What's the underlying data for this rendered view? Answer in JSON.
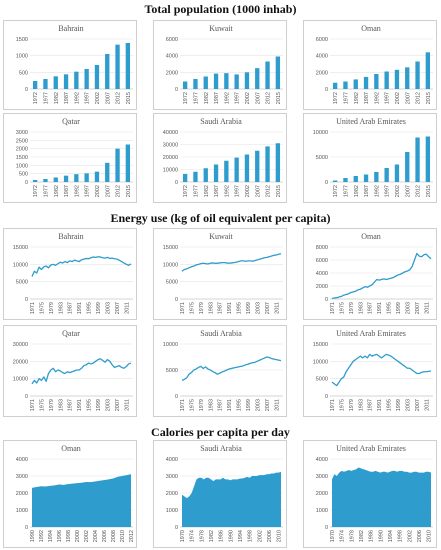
{
  "sections": [
    {
      "title": "Total population (1000 inhab)",
      "top": 2
    },
    {
      "title": "Energy use (kg of oil equivalent per capita)",
      "top": 211
    },
    {
      "title": "Calories per capita per day",
      "top": 425
    }
  ],
  "colors": {
    "accent": "#2e9ccd",
    "accent_fill": "#2e9ccd"
  },
  "chart_data": [
    {
      "type": "bar",
      "title": "Bahrain",
      "categories": [
        "1972",
        "1977",
        "1982",
        "1987",
        "1992",
        "1997",
        "2002",
        "2007",
        "2012",
        "2015"
      ],
      "values": [
        240,
        300,
        380,
        440,
        520,
        600,
        720,
        1050,
        1330,
        1380
      ],
      "ylim": [
        0,
        1500
      ],
      "yticks": [
        0,
        500,
        1000,
        1500
      ]
    },
    {
      "type": "bar",
      "title": "Kuwait",
      "categories": [
        "1972",
        "1977",
        "1982",
        "1987",
        "1992",
        "1997",
        "2002",
        "2007",
        "2012",
        "2015"
      ],
      "values": [
        900,
        1200,
        1500,
        1850,
        1900,
        1750,
        2000,
        2500,
        3300,
        3900
      ],
      "ylim": [
        0,
        6000
      ],
      "yticks": [
        0,
        2000,
        4000,
        6000
      ]
    },
    {
      "type": "bar",
      "title": "Oman",
      "categories": [
        "1972",
        "1977",
        "1982",
        "1987",
        "1992",
        "1997",
        "2002",
        "2007",
        "2012",
        "2015"
      ],
      "values": [
        750,
        900,
        1150,
        1450,
        1800,
        2100,
        2300,
        2600,
        3300,
        4400
      ],
      "ylim": [
        0,
        6000
      ],
      "yticks": [
        0,
        2000,
        4000,
        6000
      ]
    },
    {
      "type": "bar",
      "title": "Qatar",
      "categories": [
        "1972",
        "1977",
        "1982",
        "1987",
        "1992",
        "1997",
        "2002",
        "2007",
        "2012",
        "2015"
      ],
      "values": [
        120,
        180,
        270,
        380,
        470,
        520,
        620,
        1150,
        2000,
        2250
      ],
      "ylim": [
        0,
        3000
      ],
      "yticks": [
        0,
        500,
        1000,
        1500,
        2000,
        2500,
        3000
      ]
    },
    {
      "type": "bar",
      "title": "Saudi Arabia",
      "categories": [
        "1972",
        "1977",
        "1982",
        "1987",
        "1992",
        "1997",
        "2002",
        "2007",
        "2012",
        "2015"
      ],
      "values": [
        6500,
        8200,
        11000,
        14000,
        17000,
        19500,
        22000,
        25000,
        28500,
        31000
      ],
      "ylim": [
        0,
        40000
      ],
      "yticks": [
        0,
        10000,
        20000,
        30000,
        40000
      ]
    },
    {
      "type": "bar",
      "title": "United Arab Emirates",
      "categories": [
        "1972",
        "1977",
        "1982",
        "1987",
        "1992",
        "1997",
        "2002",
        "2007",
        "2012",
        "2015"
      ],
      "values": [
        300,
        800,
        1200,
        1500,
        2000,
        2800,
        3500,
        6000,
        8900,
        9100
      ],
      "ylim": [
        0,
        10000
      ],
      "yticks": [
        0,
        5000,
        10000
      ]
    },
    {
      "type": "line",
      "title": "Bahrain",
      "x": [
        1971,
        1972,
        1973,
        1974,
        1975,
        1976,
        1977,
        1978,
        1979,
        1980,
        1981,
        1982,
        1983,
        1984,
        1985,
        1986,
        1987,
        1988,
        1989,
        1990,
        1991,
        1992,
        1993,
        1994,
        1995,
        1996,
        1997,
        1998,
        1999,
        2000,
        2001,
        2002,
        2003,
        2004,
        2005,
        2006,
        2007,
        2008,
        2009,
        2010,
        2011,
        2012,
        2013
      ],
      "values": [
        6500,
        8000,
        7500,
        9200,
        8500,
        9300,
        9500,
        9000,
        9800,
        10000,
        9700,
        10200,
        10600,
        10400,
        10800,
        10500,
        11000,
        10800,
        11200,
        11000,
        10800,
        11300,
        11500,
        11700,
        11600,
        11900,
        12100,
        12000,
        12200,
        12100,
        11900,
        11800,
        12000,
        11700,
        11800,
        11600,
        11500,
        11200,
        10800,
        10400,
        10000,
        9700,
        10100
      ],
      "xticks": [
        "1971",
        "1975",
        "1979",
        "1983",
        "1987",
        "1991",
        "1995",
        "1999",
        "2003",
        "2007",
        "2011"
      ],
      "ylim": [
        0,
        15000
      ],
      "yticks": [
        0,
        5000,
        10000,
        15000
      ]
    },
    {
      "type": "line",
      "title": "Kuwait",
      "x": [
        1971,
        1972,
        1973,
        1974,
        1975,
        1976,
        1977,
        1978,
        1979,
        1980,
        1981,
        1982,
        1983,
        1984,
        1985,
        1986,
        1987,
        1988,
        1989,
        1990,
        1991,
        1992,
        1993,
        1994,
        1995,
        1996,
        1997,
        1998,
        1999,
        2000,
        2001,
        2002,
        2003,
        2004,
        2005,
        2006,
        2007,
        2008,
        2009,
        2010,
        2011,
        2012,
        2013
      ],
      "values": [
        8000,
        8500,
        8700,
        9000,
        9300,
        9500,
        9800,
        10000,
        10200,
        10300,
        10200,
        10100,
        10300,
        10400,
        10300,
        10300,
        10400,
        10500,
        10500,
        10400,
        10300,
        10400,
        10500,
        10600,
        10800,
        11000,
        11000,
        10900,
        11000,
        11000,
        10900,
        11100,
        11300,
        11500,
        11700,
        11900,
        12000,
        12200,
        12400,
        12600,
        12700,
        12900,
        13100
      ],
      "xticks": [
        "1971",
        "1975",
        "1979",
        "1983",
        "1987",
        "1991",
        "1995",
        "1999",
        "2003",
        "2007",
        "2011"
      ],
      "ylim": [
        0,
        15000
      ],
      "yticks": [
        0,
        5000,
        10000,
        15000
      ]
    },
    {
      "type": "line",
      "title": "Oman",
      "x": [
        1971,
        1972,
        1973,
        1974,
        1975,
        1976,
        1977,
        1978,
        1979,
        1980,
        1981,
        1982,
        1983,
        1984,
        1985,
        1986,
        1987,
        1988,
        1989,
        1990,
        1991,
        1992,
        1993,
        1994,
        1995,
        1996,
        1997,
        1998,
        1999,
        2000,
        2001,
        2002,
        2003,
        2004,
        2005,
        2006,
        2007,
        2008,
        2009,
        2010,
        2011,
        2012,
        2013
      ],
      "values": [
        100,
        150,
        200,
        300,
        400,
        600,
        700,
        800,
        1000,
        1100,
        1200,
        1400,
        1500,
        1700,
        1900,
        1800,
        2000,
        2200,
        2600,
        3000,
        2900,
        3000,
        3100,
        3000,
        3100,
        3200,
        3300,
        3500,
        3700,
        3800,
        4000,
        4200,
        4300,
        4500,
        5000,
        6000,
        7000,
        6600,
        6500,
        6800,
        6900,
        6500,
        6200
      ],
      "xticks": [
        "1971",
        "1975",
        "1979",
        "1983",
        "1987",
        "1991",
        "1995",
        "1999",
        "2003",
        "2007",
        "2011"
      ],
      "ylim": [
        0,
        8000
      ],
      "yticks": [
        0,
        2000,
        4000,
        6000,
        8000
      ]
    },
    {
      "type": "line",
      "title": "Qatar",
      "x": [
        1971,
        1972,
        1973,
        1974,
        1975,
        1976,
        1977,
        1978,
        1979,
        1980,
        1981,
        1982,
        1983,
        1984,
        1985,
        1986,
        1987,
        1988,
        1989,
        1990,
        1991,
        1992,
        1993,
        1994,
        1995,
        1996,
        1997,
        1998,
        1999,
        2000,
        2001,
        2002,
        2003,
        2004,
        2005,
        2006,
        2007,
        2008,
        2009,
        2010,
        2011,
        2012,
        2013
      ],
      "values": [
        7000,
        9000,
        7500,
        10000,
        9000,
        11000,
        8500,
        13000,
        15000,
        16000,
        14000,
        15000,
        14500,
        13500,
        13000,
        14000,
        13500,
        14000,
        14500,
        15000,
        15000,
        16000,
        17500,
        18000,
        19000,
        18500,
        19000,
        20000,
        21000,
        21500,
        20500,
        19500,
        21000,
        20000,
        18000,
        16500,
        17000,
        17500,
        16500,
        16000,
        17000,
        18500,
        19000
      ],
      "xticks": [
        "1971",
        "1975",
        "1979",
        "1983",
        "1987",
        "1991",
        "1995",
        "1999",
        "2003",
        "2007",
        "2011"
      ],
      "ylim": [
        0,
        30000
      ],
      "yticks": [
        0,
        10000,
        20000,
        30000
      ]
    },
    {
      "type": "line",
      "title": "Saudi Arabia",
      "x": [
        1971,
        1972,
        1973,
        1974,
        1975,
        1976,
        1977,
        1978,
        1979,
        1980,
        1981,
        1982,
        1983,
        1984,
        1985,
        1986,
        1987,
        1988,
        1989,
        1990,
        1991,
        1992,
        1993,
        1994,
        1995,
        1996,
        1997,
        1998,
        1999,
        2000,
        2001,
        2002,
        2003,
        2004,
        2005,
        2006,
        2007,
        2008,
        2009,
        2010,
        2011,
        2012,
        2013
      ],
      "values": [
        3000,
        3200,
        3500,
        4200,
        4500,
        5000,
        5200,
        5500,
        5700,
        5300,
        5600,
        5200,
        5000,
        4700,
        4500,
        4200,
        4400,
        4600,
        4800,
        5000,
        5200,
        5300,
        5400,
        5500,
        5600,
        5700,
        5800,
        6000,
        6100,
        6300,
        6400,
        6500,
        6700,
        6900,
        7100,
        7300,
        7500,
        7400,
        7200,
        7100,
        7000,
        6900,
        6800
      ],
      "xticks": [
        "1971",
        "1975",
        "1979",
        "1983",
        "1987",
        "1991",
        "1995",
        "1999",
        "2003",
        "2007",
        "2011"
      ],
      "ylim": [
        0,
        10000
      ],
      "yticks": [
        0,
        5000,
        10000
      ]
    },
    {
      "type": "line",
      "title": "United Arab Emirates",
      "x": [
        1971,
        1972,
        1973,
        1974,
        1975,
        1976,
        1977,
        1978,
        1979,
        1980,
        1981,
        1982,
        1983,
        1984,
        1985,
        1986,
        1987,
        1988,
        1989,
        1990,
        1991,
        1992,
        1993,
        1994,
        1995,
        1996,
        1997,
        1998,
        1999,
        2000,
        2001,
        2002,
        2003,
        2004,
        2005,
        2006,
        2007,
        2008,
        2009,
        2010,
        2011,
        2012,
        2013
      ],
      "values": [
        4000,
        3500,
        3000,
        4000,
        5000,
        5500,
        7000,
        8000,
        9000,
        10000,
        10500,
        11000,
        11500,
        11000,
        11500,
        11000,
        12000,
        11500,
        11800,
        12000,
        11500,
        11000,
        11500,
        12000,
        11800,
        11500,
        11000,
        10500,
        10000,
        9500,
        9000,
        8500,
        8000,
        8000,
        7500,
        7000,
        6500,
        6500,
        6800,
        7000,
        7000,
        7100,
        7200
      ],
      "xticks": [
        "1971",
        "1975",
        "1979",
        "1983",
        "1987",
        "1991",
        "1995",
        "1999",
        "2003",
        "2007",
        "2011"
      ],
      "ylim": [
        0,
        15000
      ],
      "yticks": [
        0,
        5000,
        10000,
        15000
      ]
    },
    {
      "type": "area",
      "title": "Oman",
      "x": [
        1990,
        1991,
        1992,
        1993,
        1994,
        1995,
        1996,
        1997,
        1998,
        1999,
        2000,
        2001,
        2002,
        2003,
        2004,
        2005,
        2006,
        2007,
        2008,
        2009,
        2010,
        2011,
        2012
      ],
      "values": [
        2300,
        2350,
        2400,
        2380,
        2420,
        2450,
        2500,
        2480,
        2520,
        2550,
        2580,
        2600,
        2650,
        2640,
        2680,
        2720,
        2760,
        2800,
        2850,
        2950,
        3000,
        3050,
        3100
      ],
      "xticks": [
        "1990",
        "1992",
        "1994",
        "1996",
        "1998",
        "2000",
        "2002",
        "2004",
        "2006",
        "2008",
        "2010",
        "2012"
      ],
      "ylim": [
        0,
        4000
      ],
      "yticks": [
        0,
        1000,
        2000,
        3000,
        4000
      ]
    },
    {
      "type": "area",
      "title": "Saudi Arabia",
      "x": [
        1970,
        1971,
        1972,
        1973,
        1974,
        1975,
        1976,
        1977,
        1978,
        1979,
        1980,
        1981,
        1982,
        1983,
        1984,
        1985,
        1986,
        1987,
        1988,
        1989,
        1990,
        1991,
        1992,
        1993,
        1994,
        1995,
        1996,
        1997,
        1998,
        1999,
        2000,
        2001,
        2002,
        2003,
        2004,
        2005,
        2006,
        2007,
        2008,
        2009,
        2010,
        2011
      ],
      "values": [
        1900,
        1800,
        1700,
        1800,
        2000,
        2400,
        2800,
        2900,
        2900,
        2800,
        2900,
        2900,
        2800,
        2700,
        2800,
        2800,
        2800,
        2900,
        2800,
        2800,
        2750,
        2800,
        2800,
        2800,
        2850,
        2850,
        2900,
        2950,
        2900,
        3000,
        3000,
        3000,
        3050,
        3050,
        3050,
        3100,
        3100,
        3150,
        3150,
        3200,
        3200,
        3250
      ],
      "xticks": [
        "1970",
        "1974",
        "1978",
        "1982",
        "1986",
        "1990",
        "1994",
        "1998",
        "2002",
        "2006",
        "2010"
      ],
      "ylim": [
        0,
        4000
      ],
      "yticks": [
        0,
        1000,
        2000,
        3000,
        4000
      ]
    },
    {
      "type": "area",
      "title": "United Arab Emirates",
      "x": [
        1970,
        1971,
        1972,
        1973,
        1974,
        1975,
        1976,
        1977,
        1978,
        1979,
        1980,
        1981,
        1982,
        1983,
        1984,
        1985,
        1986,
        1987,
        1988,
        1989,
        1990,
        1991,
        1992,
        1993,
        1994,
        1995,
        1996,
        1997,
        1998,
        1999,
        2000,
        2001,
        2002,
        2003,
        2004,
        2005,
        2006,
        2007,
        2008,
        2009,
        2010,
        2011
      ],
      "values": [
        2800,
        3100,
        3000,
        3200,
        3300,
        3250,
        3300,
        3350,
        3300,
        3350,
        3400,
        3500,
        3450,
        3400,
        3350,
        3300,
        3250,
        3250,
        3300,
        3250,
        3200,
        3250,
        3250,
        3200,
        3250,
        3300,
        3300,
        3250,
        3300,
        3300,
        3250,
        3250,
        3200,
        3200,
        3250,
        3250,
        3200,
        3200,
        3200,
        3250,
        3250,
        3200
      ],
      "xticks": [
        "1970",
        "1974",
        "1978",
        "1982",
        "1986",
        "1990",
        "1994",
        "1998",
        "2002",
        "2006",
        "2010"
      ],
      "ylim": [
        0,
        4000
      ],
      "yticks": [
        0,
        1000,
        2000,
        3000,
        4000
      ]
    }
  ]
}
